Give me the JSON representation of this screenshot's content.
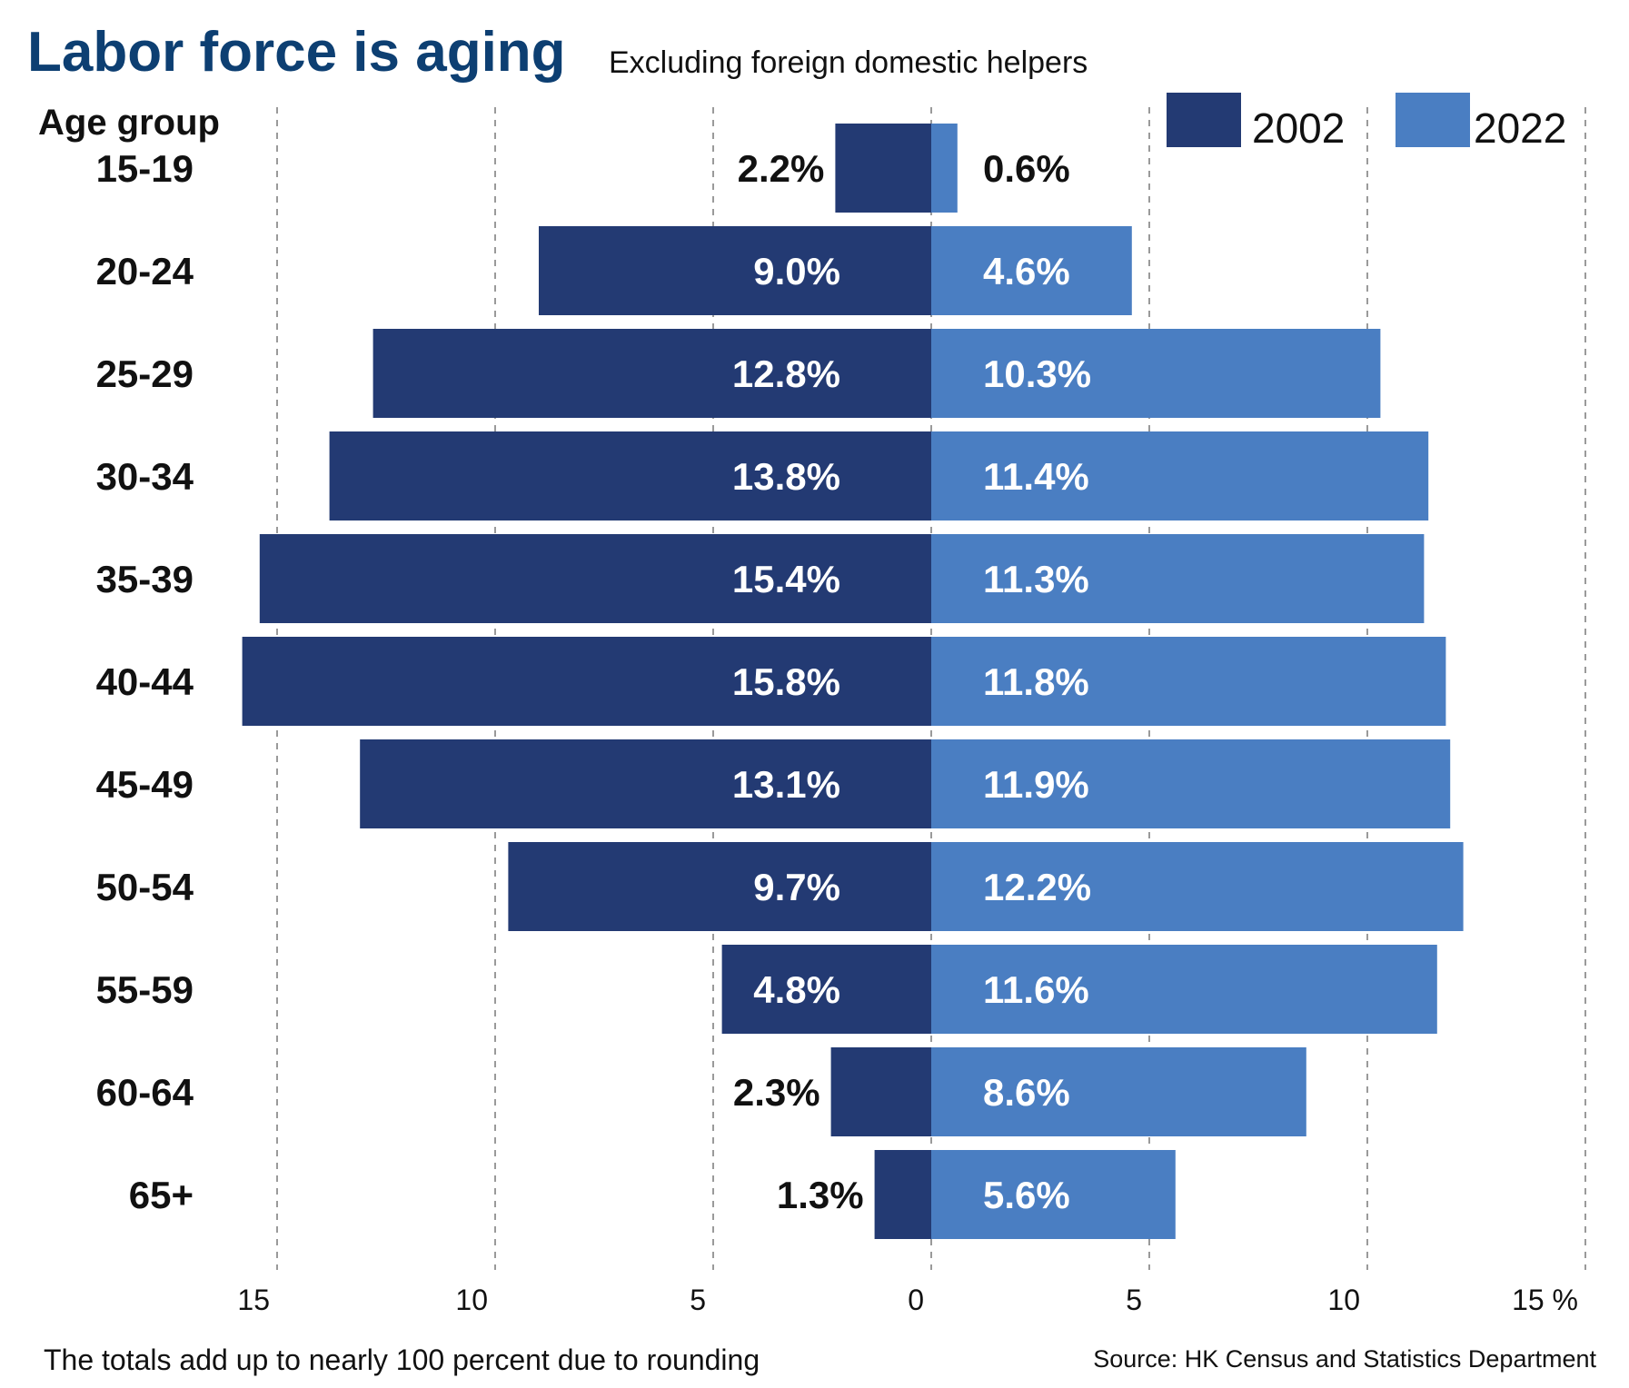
{
  "title": "Labor force is aging",
  "subtitle": "Excluding foreign domestic helpers",
  "note": "The totals add up to nearly 100 percent due to rounding",
  "source": "Source: HK Census and Statistics Department",
  "colors": {
    "title": "#0d3f72",
    "series_2002": "#233a73",
    "series_2022": "#4a7ec2"
  },
  "chart_data": {
    "type": "bar",
    "orientation": "horizontal",
    "layout": "population-pyramid",
    "category_axis_label": "Age group",
    "categories": [
      "15-19",
      "20-24",
      "25-29",
      "30-34",
      "35-39",
      "40-44",
      "45-49",
      "50-54",
      "55-59",
      "60-64",
      "65+"
    ],
    "series": [
      {
        "name": "2002",
        "side": "left",
        "values": [
          2.2,
          9.0,
          12.8,
          13.8,
          15.4,
          15.8,
          13.1,
          9.7,
          4.8,
          2.3,
          1.3
        ],
        "labels": [
          "2.2%",
          "9.0%",
          "12.8%",
          "13.8%",
          "15.4%",
          "15.8%",
          "13.1%",
          "9.7%",
          "4.8%",
          "2.3%",
          "1.3%"
        ]
      },
      {
        "name": "2022",
        "side": "right",
        "values": [
          0.6,
          4.6,
          10.3,
          11.4,
          11.3,
          11.8,
          11.9,
          12.2,
          11.6,
          8.6,
          5.6
        ],
        "labels": [
          "0.6%",
          "4.6%",
          "10.3%",
          "11.4%",
          "11.3%",
          "11.8%",
          "11.9%",
          "12.2%",
          "11.6%",
          "8.6%",
          "5.6%"
        ]
      }
    ],
    "xlim": [
      -15,
      15
    ],
    "x_ticks": [
      -15,
      -10,
      -5,
      0,
      5,
      10,
      15
    ],
    "x_tick_labels": [
      "15",
      "10",
      "5",
      "0",
      "5",
      "10",
      "15 %"
    ],
    "grid": true,
    "legend_position": "top-right"
  }
}
